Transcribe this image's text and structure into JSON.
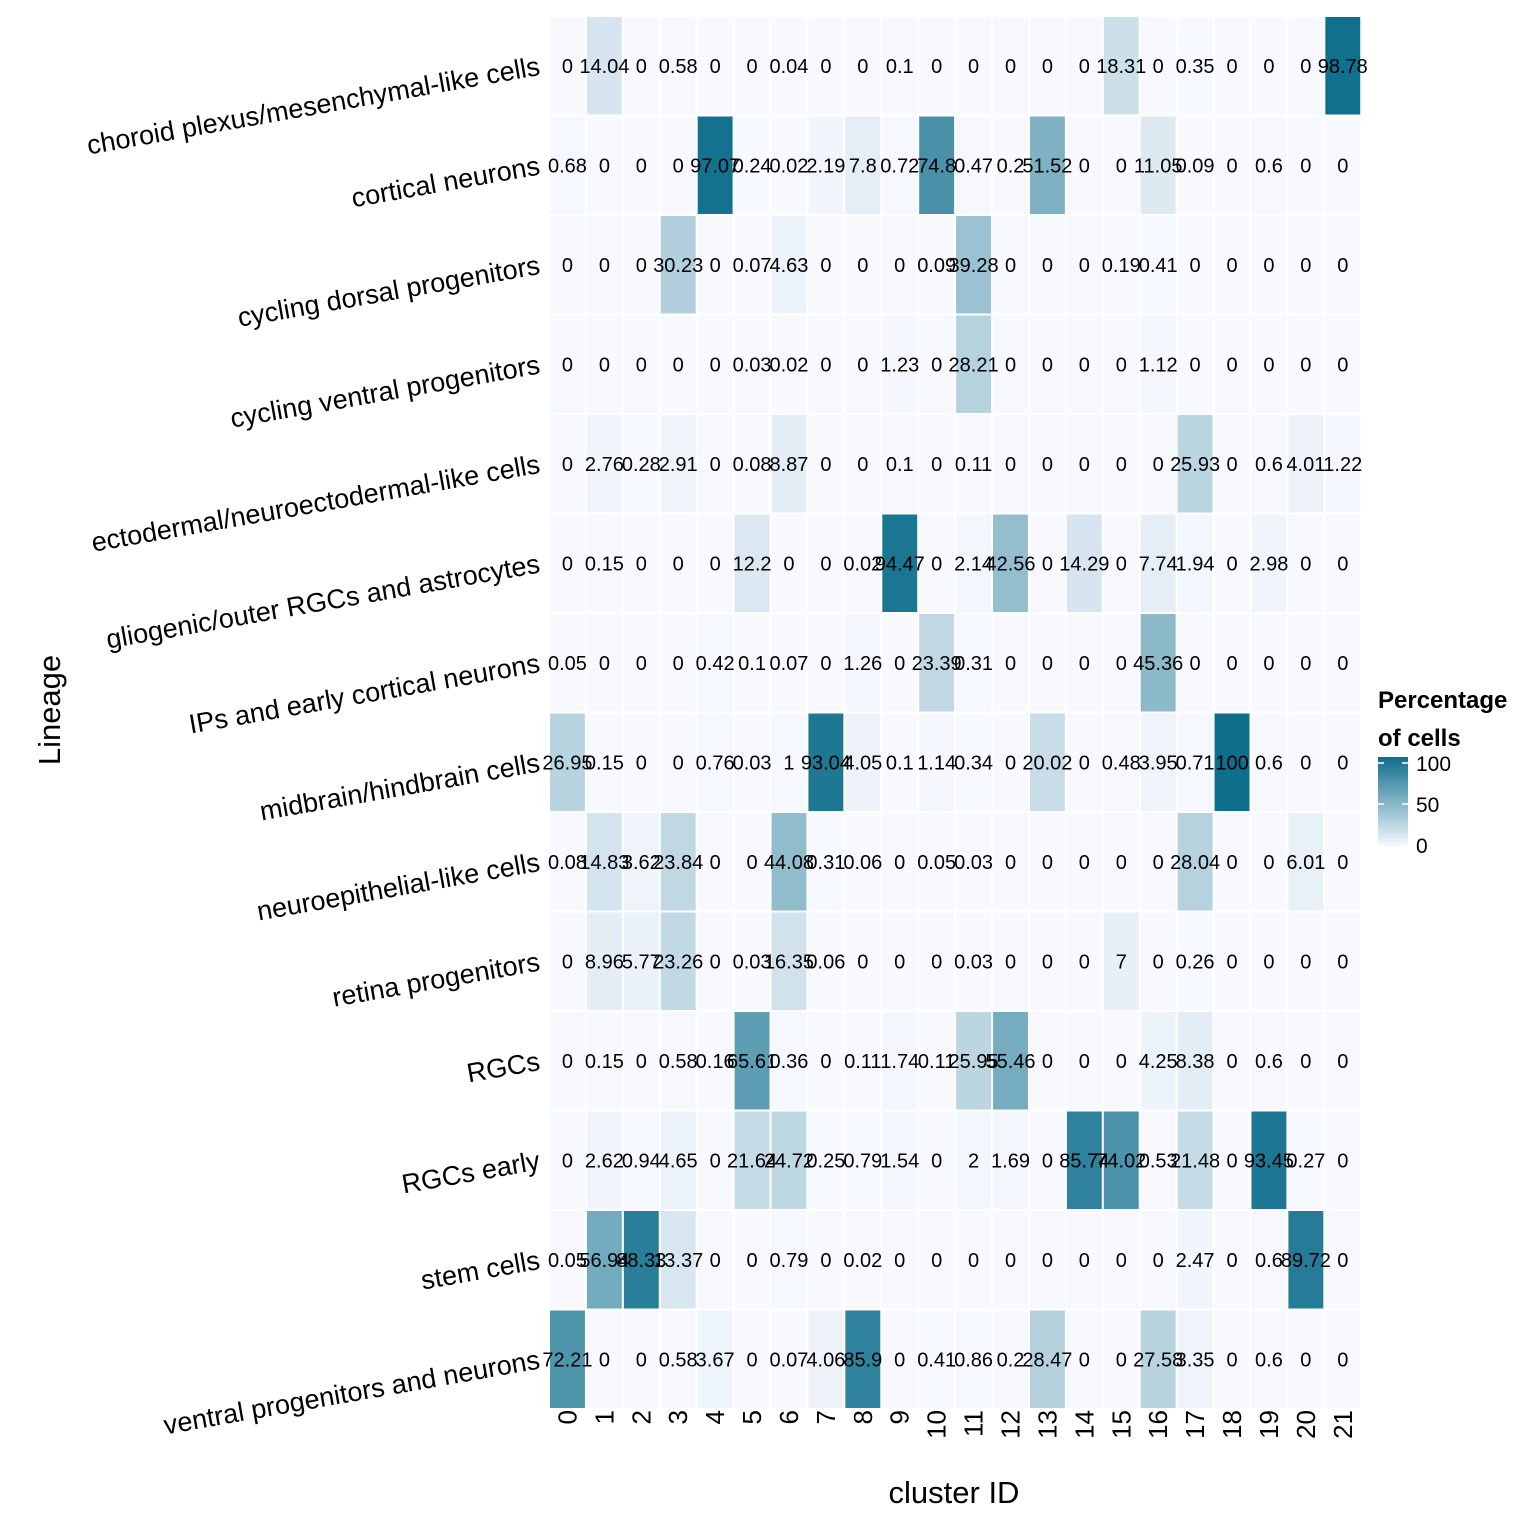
{
  "chart_data": {
    "type": "heatmap",
    "xlabel": "cluster ID",
    "ylabel": "Lineage",
    "columns": [
      "0",
      "1",
      "2",
      "3",
      "4",
      "5",
      "6",
      "7",
      "8",
      "9",
      "10",
      "11",
      "12",
      "13",
      "14",
      "15",
      "16",
      "17",
      "18",
      "19",
      "20",
      "21"
    ],
    "rows": [
      "choroid plexus/mesenchymal-like cells",
      "cortical neurons",
      "cycling dorsal progenitors",
      "cycling ventral progenitors",
      "ectodermal/neuroectodermal-like cells",
      "gliogenic/outer RGCs and astrocytes",
      "IPs and early cortical neurons",
      "midbrain/hindbrain cells",
      "neuroepithelial-like cells",
      "retina progenitors",
      "RGCs",
      "RGCs early",
      "stem cells",
      "ventral progenitors and neurons"
    ],
    "values": [
      [
        0,
        14.04,
        0,
        0.58,
        0,
        0,
        0.04,
        0,
        0,
        0.1,
        0,
        0,
        0,
        0,
        0,
        18.31,
        0,
        0.35,
        0,
        0,
        0,
        98.78
      ],
      [
        0.68,
        0,
        0,
        0,
        97.07,
        0.24,
        0.02,
        2.19,
        7.8,
        0.72,
        74.8,
        0.47,
        0.2,
        51.52,
        0,
        0,
        11.05,
        0.09,
        0,
        0.6,
        0,
        0
      ],
      [
        0,
        0,
        0,
        30.23,
        0,
        0.07,
        4.63,
        0,
        0,
        0,
        0.09,
        39.28,
        0,
        0,
        0,
        0.19,
        0.41,
        0,
        0,
        0,
        0,
        0
      ],
      [
        0,
        0,
        0,
        0,
        0,
        0.03,
        0.02,
        0,
        0,
        1.23,
        0,
        28.21,
        0,
        0,
        0,
        0,
        1.12,
        0,
        0,
        0,
        0,
        0
      ],
      [
        0,
        2.76,
        0.28,
        2.91,
        0,
        0.08,
        8.87,
        0,
        0,
        0.1,
        0,
        0.11,
        0,
        0,
        0,
        0,
        0,
        25.93,
        0,
        0.6,
        4.01,
        1.22
      ],
      [
        0,
        0.15,
        0,
        0,
        0,
        12.2,
        0,
        0,
        0.02,
        94.47,
        0,
        2.14,
        42.56,
        0,
        14.29,
        0,
        7.74,
        1.94,
        0,
        2.98,
        0,
        0
      ],
      [
        0.05,
        0,
        0,
        0,
        0.42,
        0.1,
        0.07,
        0,
        1.26,
        0,
        23.39,
        0.31,
        0,
        0,
        0,
        0,
        45.36,
        0,
        0,
        0,
        0,
        0
      ],
      [
        26.95,
        0.15,
        0,
        0,
        0.76,
        0.03,
        1,
        93.04,
        4.05,
        0.1,
        1.14,
        0.34,
        0,
        20.02,
        0,
        0.48,
        3.95,
        0.71,
        100,
        0.6,
        0,
        0
      ],
      [
        0.08,
        14.83,
        3.62,
        23.84,
        0,
        0,
        44.08,
        0.31,
        0.06,
        0,
        0.05,
        0.03,
        0,
        0,
        0,
        0,
        0,
        28.04,
        0,
        0,
        6.01,
        0
      ],
      [
        0,
        8.96,
        5.77,
        23.26,
        0,
        0.03,
        16.35,
        0.06,
        0,
        0,
        0,
        0.03,
        0,
        0,
        0,
        7,
        0,
        0.26,
        0,
        0,
        0,
        0
      ],
      [
        0,
        0.15,
        0,
        0.58,
        0.16,
        65.61,
        0.36,
        0,
        0.11,
        1.74,
        0.11,
        25.95,
        55.46,
        0,
        0,
        0,
        4.25,
        8.38,
        0,
        0.6,
        0,
        0
      ],
      [
        0,
        2.62,
        0.94,
        4.65,
        0,
        21.64,
        24.72,
        0.25,
        0.79,
        1.54,
        0,
        2,
        1.69,
        0,
        85.74,
        74.02,
        0.53,
        21.48,
        0,
        93.45,
        0.27,
        0
      ],
      [
        0.05,
        56.94,
        88.33,
        13.37,
        0,
        0,
        0.79,
        0,
        0.02,
        0,
        0,
        0,
        0,
        0,
        0,
        0,
        0,
        2.47,
        0,
        0.6,
        89.72,
        0
      ],
      [
        72.21,
        0,
        0,
        0.58,
        3.67,
        0,
        0.07,
        4.06,
        85.9,
        0,
        0.41,
        0.86,
        0.2,
        28.47,
        0,
        0,
        27.58,
        3.35,
        0,
        0.6,
        0,
        0
      ]
    ],
    "cell_labels": [
      [
        "0",
        "14.04",
        "0",
        "0.58",
        "0",
        "0",
        "0.04",
        "0",
        "0",
        "0.1",
        "0",
        "0",
        "0",
        "0",
        "0",
        "18.31",
        "0",
        "0.35",
        "0",
        "0",
        "0",
        "98.78"
      ],
      [
        "0.68",
        "0",
        "0",
        "0",
        "97.07",
        "0.24",
        "0.02",
        "2.19",
        "7.8",
        "0.72",
        "74.8",
        "0.47",
        "0.2",
        "51.52",
        "0",
        "0",
        "11.05",
        "0.09",
        "0",
        "0.6",
        "0",
        "0"
      ],
      [
        "0",
        "0",
        "0",
        "30.23",
        "0",
        "0.07",
        "4.63",
        "0",
        "0",
        "0",
        "0.09",
        "39.28",
        "0",
        "0",
        "0",
        "0.19",
        "0.41",
        "0",
        "0",
        "0",
        "0",
        "0"
      ],
      [
        "0",
        "0",
        "0",
        "0",
        "0",
        "0.03",
        "0.02",
        "0",
        "0",
        "1.23",
        "0",
        "28.21",
        "0",
        "0",
        "0",
        "0",
        "1.12",
        "0",
        "0",
        "0",
        "0",
        "0"
      ],
      [
        "0",
        "2.76",
        "0.28",
        "2.91",
        "0",
        "0.08",
        "8.87",
        "0",
        "0",
        "0.1",
        "0",
        "0.11",
        "0",
        "0",
        "0",
        "0",
        "0",
        "25.93",
        "0",
        "0.6",
        "4.01",
        "1.22"
      ],
      [
        "0",
        "0.15",
        "0",
        "0",
        "0",
        "12.2",
        "0",
        "0",
        "0.02",
        "94.47",
        "0",
        "2.14",
        "42.56",
        "0",
        "14.29",
        "0",
        "7.74",
        "1.94",
        "0",
        "2.98",
        "0",
        "0"
      ],
      [
        "0.05",
        "0",
        "0",
        "0",
        "0.42",
        "0.1",
        "0.07",
        "0",
        "1.26",
        "0",
        "23.39",
        "0.31",
        "0",
        "0",
        "0",
        "0",
        "45.36",
        "0",
        "0",
        "0",
        "0",
        "0"
      ],
      [
        "26.95",
        "0.15",
        "0",
        "0",
        "0.76",
        "0.03",
        "1",
        "93.04",
        "4.05",
        "0.1",
        "1.14",
        "0.34",
        "0",
        "20.02",
        "0",
        "0.48",
        "3.95",
        "0.71",
        "100",
        "0.6",
        "0",
        "0"
      ],
      [
        "0.08",
        "14.83",
        "3.62",
        "23.84",
        "0",
        "0",
        "44.08",
        "0.31",
        "0.06",
        "0",
        "0.05",
        "0.03",
        "0",
        "0",
        "0",
        "0",
        "0",
        "28.04",
        "0",
        "0",
        "6.01",
        "0"
      ],
      [
        "0",
        "8.96",
        "5.77",
        "23.26",
        "0",
        "0.03",
        "16.35",
        "0.06",
        "0",
        "0",
        "0",
        "0.03",
        "0",
        "0",
        "0",
        "7",
        "0",
        "0.26",
        "0",
        "0",
        "0",
        "0"
      ],
      [
        "0",
        "0.15",
        "0",
        "0.58",
        "0.16",
        "65.61",
        "0.36",
        "0",
        "0.11",
        "1.74",
        "0.11",
        "25.95",
        "55.46",
        "0",
        "0",
        "0",
        "4.25",
        "8.38",
        "0",
        "0.6",
        "0",
        "0"
      ],
      [
        "0",
        "2.62",
        "0.94",
        "4.65",
        "0",
        "21.64",
        "24.72",
        "0.25",
        "0.79",
        "1.54",
        "0",
        "2",
        "1.69",
        "0",
        "85.74",
        "74.02",
        "0.53",
        "21.48",
        "0",
        "93.45",
        "0.27",
        "0"
      ],
      [
        "0.05",
        "56.94",
        "88.33",
        "13.37",
        "0",
        "0",
        "0.79",
        "0",
        "0.02",
        "0",
        "0",
        "0",
        "0",
        "0",
        "0",
        "0",
        "0",
        "2.47",
        "0",
        "0.6",
        "89.72",
        "0"
      ],
      [
        "72.21",
        "0",
        "0",
        "0.58",
        "3.67",
        "0",
        "0.07",
        "4.06",
        "85.9",
        "0",
        "0.41",
        "0.86",
        "0.2",
        "28.47",
        "0",
        "0",
        "27.58",
        "3.35",
        "0",
        "0.6",
        "0",
        "0"
      ]
    ],
    "color_range": [
      0,
      100
    ],
    "color_low": "#f7f9ff",
    "color_high": "#0e6e8c",
    "legend": {
      "title_line1": "Percentage",
      "title_line2": "of cells",
      "ticks": [
        100,
        50,
        0
      ],
      "placement": "right"
    }
  }
}
